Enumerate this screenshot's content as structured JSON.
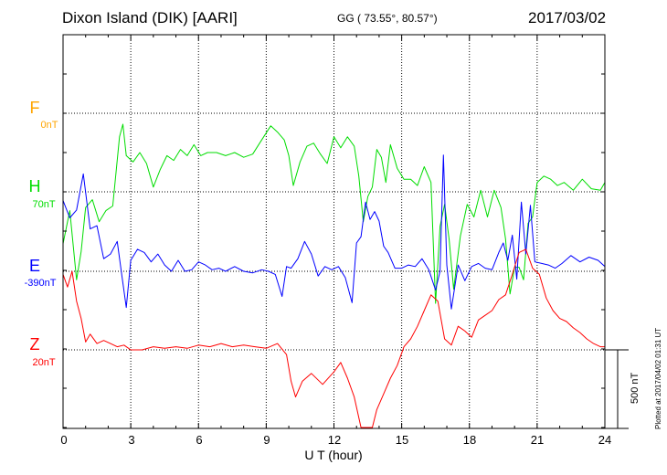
{
  "header": {
    "station": "Dixon Island (DIK)  [AARI]",
    "coords": "GG ( 73.55°,  80.57°)",
    "date": "2017/03/02"
  },
  "colors": {
    "F": "#ffa500",
    "H": "#00dd00",
    "E": "#0000ff",
    "Z": "#ff0000"
  },
  "components": [
    {
      "key": "F",
      "letter": "F",
      "base": "0nT"
    },
    {
      "key": "H",
      "letter": "H",
      "base": "70nT"
    },
    {
      "key": "E",
      "letter": "E",
      "base": "-390nT"
    },
    {
      "key": "Z",
      "letter": "Z",
      "base": "20nT"
    }
  ],
  "scale_label": "500 nT",
  "plotted_note": "Plotted at 2017/04/02 01:31 UT",
  "chart_data": {
    "type": "line",
    "xlabel": "U T (hour)",
    "xlim": [
      0,
      24
    ],
    "xticks": [
      "0",
      "3",
      "6",
      "9",
      "12",
      "15",
      "18",
      "21",
      "24"
    ],
    "units": "nT",
    "scale_bar_nT": 500,
    "series": [
      {
        "name": "F",
        "baseline_nT": 0,
        "x": [],
        "y": []
      },
      {
        "name": "H",
        "baseline_nT": 70,
        "x": [
          0,
          0.3,
          0.6,
          0.8,
          1.0,
          1.3,
          1.6,
          1.9,
          2.2,
          2.5,
          2.65,
          2.8,
          3.1,
          3.4,
          3.7,
          4.0,
          4.3,
          4.6,
          4.9,
          5.2,
          5.5,
          5.8,
          6.1,
          6.4,
          6.8,
          7.2,
          7.6,
          8.0,
          8.4,
          8.8,
          9.2,
          9.5,
          9.8,
          10.0,
          10.2,
          10.5,
          10.8,
          11.1,
          11.4,
          11.7,
          12.0,
          12.3,
          12.6,
          12.9,
          13.1,
          13.3,
          13.5,
          13.7,
          13.9,
          14.1,
          14.3,
          14.5,
          14.8,
          15.1,
          15.4,
          15.7,
          16.0,
          16.3,
          16.5,
          16.7,
          16.9,
          17.1,
          17.3,
          17.6,
          17.9,
          18.2,
          18.5,
          18.8,
          19.1,
          19.4,
          19.6,
          19.8,
          20.0,
          20.2,
          20.4,
          20.6,
          20.8,
          21.0,
          21.3,
          21.6,
          21.9,
          22.2,
          22.6,
          23.0,
          23.4,
          23.8,
          24.0
        ],
        "y": [
          -330,
          -120,
          -560,
          -380,
          -100,
          -50,
          -190,
          -120,
          -90,
          350,
          430,
          230,
          190,
          250,
          180,
          30,
          140,
          230,
          200,
          270,
          230,
          300,
          230,
          250,
          250,
          230,
          250,
          220,
          240,
          330,
          420,
          380,
          330,
          230,
          40,
          190,
          290,
          310,
          240,
          180,
          350,
          280,
          350,
          290,
          100,
          -190,
          -30,
          30,
          270,
          220,
          60,
          300,
          150,
          80,
          80,
          40,
          160,
          60,
          -710,
          -220,
          -80,
          -300,
          -620,
          -280,
          -80,
          -160,
          10,
          -160,
          10,
          -100,
          -300,
          -650,
          -480,
          -480,
          -560,
          -200,
          -160,
          60,
          100,
          80,
          40,
          60,
          10,
          80,
          20,
          10,
          60
        ]
      },
      {
        "name": "E",
        "baseline_nT": -390,
        "x": [
          0,
          0.3,
          0.6,
          0.9,
          1.2,
          1.5,
          1.8,
          2.1,
          2.4,
          2.6,
          2.8,
          3.0,
          3.3,
          3.6,
          3.9,
          4.2,
          4.5,
          4.8,
          5.1,
          5.4,
          5.7,
          6.0,
          6.3,
          6.6,
          6.9,
          7.2,
          7.6,
          8.0,
          8.4,
          8.8,
          9.1,
          9.4,
          9.7,
          9.9,
          10.1,
          10.4,
          10.7,
          11.0,
          11.3,
          11.6,
          11.9,
          12.2,
          12.5,
          12.8,
          13.0,
          13.2,
          13.4,
          13.6,
          13.8,
          14.0,
          14.2,
          14.4,
          14.7,
          15.0,
          15.3,
          15.6,
          15.9,
          16.2,
          16.5,
          16.7,
          16.85,
          17.0,
          17.2,
          17.5,
          17.8,
          18.1,
          18.4,
          18.7,
          19.0,
          19.3,
          19.5,
          19.7,
          19.9,
          20.1,
          20.3,
          20.5,
          20.7,
          20.9,
          21.2,
          21.5,
          21.8,
          22.1,
          22.5,
          22.9,
          23.3,
          23.7,
          24.0
        ],
        "y": [
          450,
          340,
          390,
          620,
          270,
          290,
          80,
          110,
          190,
          -20,
          -230,
          70,
          140,
          120,
          60,
          110,
          40,
          0,
          70,
          0,
          10,
          60,
          40,
          10,
          20,
          0,
          30,
          0,
          -10,
          10,
          0,
          -20,
          -160,
          30,
          20,
          80,
          190,
          110,
          -30,
          30,
          10,
          30,
          -40,
          -200,
          180,
          220,
          440,
          330,
          380,
          320,
          160,
          120,
          20,
          20,
          40,
          30,
          80,
          10,
          -120,
          0,
          740,
          40,
          -240,
          40,
          -60,
          30,
          50,
          20,
          10,
          120,
          180,
          70,
          230,
          -50,
          440,
          110,
          420,
          60,
          50,
          40,
          20,
          50,
          100,
          60,
          90,
          70,
          30
        ]
      },
      {
        "name": "Z",
        "baseline_nT": 20,
        "x": [
          0,
          0.2,
          0.4,
          0.6,
          0.8,
          1.0,
          1.2,
          1.5,
          1.8,
          2.1,
          2.4,
          2.7,
          3.0,
          3.5,
          4.0,
          4.5,
          5.0,
          5.5,
          6.0,
          6.5,
          7.0,
          7.5,
          8.0,
          8.5,
          9.0,
          9.5,
          9.9,
          10.1,
          10.3,
          10.6,
          11.0,
          11.5,
          12.0,
          12.3,
          12.6,
          12.9,
          13.2,
          13.5,
          13.7,
          13.9,
          14.2,
          14.5,
          14.8,
          15.1,
          15.4,
          15.7,
          16.0,
          16.3,
          16.6,
          16.9,
          17.2,
          17.5,
          17.8,
          18.1,
          18.4,
          18.7,
          19.0,
          19.3,
          19.6,
          19.9,
          20.2,
          20.5,
          20.8,
          21.1,
          21.4,
          21.7,
          22.0,
          22.3,
          22.6,
          22.9,
          23.2,
          23.5,
          23.8,
          24.0
        ],
        "y": [
          480,
          400,
          500,
          310,
          200,
          50,
          100,
          40,
          60,
          40,
          20,
          30,
          0,
          0,
          20,
          10,
          20,
          10,
          30,
          20,
          40,
          20,
          30,
          20,
          10,
          40,
          -30,
          -200,
          -300,
          -200,
          -150,
          -220,
          -140,
          -80,
          -180,
          -300,
          -540,
          -660,
          -600,
          -380,
          -280,
          -180,
          -100,
          20,
          70,
          150,
          250,
          350,
          310,
          70,
          30,
          150,
          120,
          80,
          190,
          220,
          250,
          320,
          350,
          480,
          620,
          640,
          520,
          480,
          330,
          250,
          200,
          180,
          140,
          110,
          70,
          40,
          20,
          20
        ]
      }
    ]
  }
}
